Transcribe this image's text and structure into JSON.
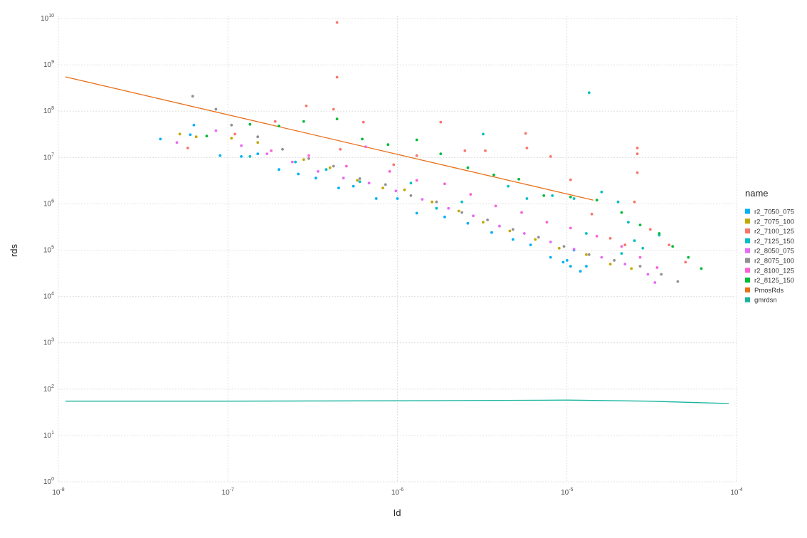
{
  "chart_data": {
    "type": "scatter",
    "title": "",
    "xlabel": "Id",
    "ylabel": "rds",
    "x_scale": "log10",
    "y_scale": "log10",
    "xlim": [
      1e-08,
      0.0001
    ],
    "ylim": [
      1,
      10000000000.0
    ],
    "x_ticks": [
      {
        "base": "10",
        "exp": "-8"
      },
      {
        "base": "10",
        "exp": "-7"
      },
      {
        "base": "10",
        "exp": "-6"
      },
      {
        "base": "10",
        "exp": "-5"
      },
      {
        "base": "10",
        "exp": "-4"
      }
    ],
    "y_ticks": [
      {
        "base": "10",
        "exp": "0"
      },
      {
        "base": "10",
        "exp": "1"
      },
      {
        "base": "10",
        "exp": "2"
      },
      {
        "base": "10",
        "exp": "3"
      },
      {
        "base": "10",
        "exp": "4"
      },
      {
        "base": "10",
        "exp": "5"
      },
      {
        "base": "10",
        "exp": "6"
      },
      {
        "base": "10",
        "exp": "7"
      },
      {
        "base": "10",
        "exp": "8"
      },
      {
        "base": "10",
        "exp": "9"
      },
      {
        "base": "10",
        "exp": "10"
      }
    ],
    "grid": true,
    "legend": {
      "title": "name",
      "position": "right"
    },
    "series": [
      {
        "name": "r2_7050_075",
        "color": "#00B0F6",
        "kind": "points",
        "points": [
          [
            4e-08,
            25000000.0
          ],
          [
            6e-08,
            31000000.0
          ],
          [
            6.3e-08,
            50000000.0
          ],
          [
            9e-08,
            11000000.0
          ],
          [
            1.2e-07,
            10500000.0
          ],
          [
            1.5e-07,
            12000000.0
          ],
          [
            2e-07,
            5500000.0
          ],
          [
            2.6e-07,
            4400000.0
          ],
          [
            3.3e-07,
            3600000.0
          ],
          [
            4.5e-07,
            2200000.0
          ],
          [
            5.5e-07,
            2400000.0
          ],
          [
            7.5e-07,
            1300000.0
          ],
          [
            1e-06,
            1300000.0
          ],
          [
            1.3e-06,
            630000.0
          ],
          [
            1.9e-06,
            520000.0
          ],
          [
            2.6e-06,
            380000.0
          ],
          [
            3.6e-06,
            240000.0
          ],
          [
            4.8e-06,
            170000.0
          ],
          [
            6.1e-06,
            130000.0
          ],
          [
            8e-06,
            70000.0
          ],
          [
            9.5e-06,
            55000.0
          ],
          [
            1.05e-05,
            45000.0
          ],
          [
            1.2e-05,
            35000.0
          ],
          [
            1.3e-05,
            45000.0
          ],
          [
            1e-05,
            60000.0
          ],
          [
            1.1e-05,
            100000.0
          ]
        ]
      },
      {
        "name": "r2_7075_100",
        "color": "#C0A900",
        "kind": "points",
        "points": [
          [
            5.2e-08,
            32000000.0
          ],
          [
            6.5e-08,
            28000000.0
          ],
          [
            1.05e-07,
            26000000.0
          ],
          [
            1.5e-07,
            21000000.0
          ],
          [
            2.8e-07,
            9000000.0
          ],
          [
            4e-07,
            6000000.0
          ],
          [
            5.8e-07,
            3200000.0
          ],
          [
            8.2e-07,
            2200000.0
          ],
          [
            1.1e-06,
            2000000.0
          ],
          [
            1.6e-06,
            1100000.0
          ],
          [
            2.3e-06,
            700000.0
          ],
          [
            3.2e-06,
            400000.0
          ],
          [
            4.6e-06,
            260000.0
          ],
          [
            6.5e-06,
            170000.0
          ],
          [
            9e-06,
            110000.0
          ],
          [
            1.3e-05,
            80000.0
          ],
          [
            1.8e-05,
            50000.0
          ],
          [
            2.4e-05,
            40000.0
          ]
        ]
      },
      {
        "name": "r2_7100_125",
        "color": "#F8766D",
        "kind": "points",
        "points": [
          [
            5.8e-08,
            16000000.0
          ],
          [
            1.1e-07,
            32000000.0
          ],
          [
            1.9e-07,
            60000000.0
          ],
          [
            2.9e-07,
            130000000.0
          ],
          [
            4.4e-07,
            8200000000.0
          ],
          [
            4.4e-07,
            540000000.0
          ],
          [
            4.2e-07,
            110000000.0
          ],
          [
            4.6e-07,
            15000000.0
          ],
          [
            6.3e-07,
            58000000.0
          ],
          [
            9.5e-07,
            7000000.0
          ],
          [
            1.3e-06,
            11000000.0
          ],
          [
            1.8e-06,
            58000000.0
          ],
          [
            2.5e-06,
            14000000.0
          ],
          [
            3.3e-06,
            14000000.0
          ],
          [
            5.7e-06,
            33000000.0
          ],
          [
            5.8e-06,
            16000000.0
          ],
          [
            8e-06,
            10500000.0
          ],
          [
            1.05e-05,
            3300000.0
          ],
          [
            2.6e-05,
            16000000.0
          ],
          [
            2.6e-05,
            12000000.0
          ],
          [
            2.6e-05,
            4700000.0
          ],
          [
            2.5e-05,
            1100000.0
          ],
          [
            1.4e-05,
            600000.0
          ],
          [
            1.8e-05,
            180000.0
          ],
          [
            2.2e-05,
            130000.0
          ],
          [
            3.1e-05,
            280000.0
          ],
          [
            4e-05,
            130000.0
          ],
          [
            5e-05,
            55000.0
          ]
        ]
      },
      {
        "name": "r2_7125_150",
        "color": "#00BFC4",
        "kind": "points",
        "points": [
          [
            1.35e-07,
            10500000.0
          ],
          [
            2.5e-07,
            8000000.0
          ],
          [
            3.8e-07,
            5500000.0
          ],
          [
            6e-07,
            3000000.0
          ],
          [
            1.2e-06,
            2800000.0
          ],
          [
            1.7e-06,
            800000.0
          ],
          [
            2.4e-06,
            1100000.0
          ],
          [
            3.2e-06,
            32000000.0
          ],
          [
            4.5e-06,
            2400000.0
          ],
          [
            5.8e-06,
            1300000.0
          ],
          [
            8.2e-06,
            1500000.0
          ],
          [
            1.1e-05,
            1300000.0
          ],
          [
            1.35e-05,
            250000000.0
          ],
          [
            1.6e-05,
            1800000.0
          ],
          [
            2e-05,
            1100000.0
          ],
          [
            2.3e-05,
            400000.0
          ],
          [
            2.5e-05,
            160000.0
          ],
          [
            2.8e-05,
            110000.0
          ],
          [
            3.5e-05,
            210000.0
          ],
          [
            1.3e-05,
            230000.0
          ],
          [
            2.1e-05,
            85000.0
          ]
        ]
      },
      {
        "name": "r2_8050_075",
        "color": "#E76BF3",
        "kind": "points",
        "points": [
          [
            5e-08,
            21000000.0
          ],
          [
            8.5e-08,
            38000000.0
          ],
          [
            1.2e-07,
            18000000.0
          ],
          [
            1.7e-07,
            12000000.0
          ],
          [
            2.4e-07,
            8000000.0
          ],
          [
            3.4e-07,
            5000000.0
          ],
          [
            4.8e-07,
            3600000.0
          ],
          [
            6.8e-07,
            2800000.0
          ],
          [
            9.8e-07,
            1900000.0
          ],
          [
            1.4e-06,
            1250000.0
          ],
          [
            2e-06,
            800000.0
          ],
          [
            2.8e-06,
            550000.0
          ],
          [
            4e-06,
            330000.0
          ],
          [
            5.6e-06,
            230000.0
          ],
          [
            8e-06,
            150000.0
          ],
          [
            1.1e-05,
            105000.0
          ],
          [
            1.6e-05,
            70000.0
          ],
          [
            2.2e-05,
            50000.0
          ],
          [
            3e-05,
            30000.0
          ],
          [
            3.3e-05,
            20000.0
          ]
        ]
      },
      {
        "name": "r2_8075_100",
        "color": "#919191",
        "kind": "points",
        "points": [
          [
            6.2e-08,
            210000000.0
          ],
          [
            8.5e-08,
            110000000.0
          ],
          [
            1.05e-07,
            50000000.0
          ],
          [
            1.5e-07,
            28000000.0
          ],
          [
            2.1e-07,
            15000000.0
          ],
          [
            3e-07,
            9500000.0
          ],
          [
            4.2e-07,
            6500000.0
          ],
          [
            6e-07,
            3500000.0
          ],
          [
            8.5e-07,
            2600000.0
          ],
          [
            1.2e-06,
            1500000.0
          ],
          [
            1.7e-06,
            1100000.0
          ],
          [
            2.4e-06,
            650000.0
          ],
          [
            3.4e-06,
            450000.0
          ],
          [
            4.8e-06,
            280000.0
          ],
          [
            6.8e-06,
            190000.0
          ],
          [
            9.6e-06,
            120000.0
          ],
          [
            1.35e-05,
            80000.0
          ],
          [
            1.9e-05,
            60000.0
          ],
          [
            2.7e-05,
            45000.0
          ],
          [
            3.6e-05,
            30000.0
          ],
          [
            4.5e-05,
            21000.0
          ]
        ]
      },
      {
        "name": "r2_8100_125",
        "color": "#FB61D7",
        "kind": "points",
        "points": [
          [
            1.8e-07,
            14000000.0
          ],
          [
            3e-07,
            11000000.0
          ],
          [
            5e-07,
            6500000.0
          ],
          [
            6.5e-07,
            17000000.0
          ],
          [
            9e-07,
            5000000.0
          ],
          [
            1.3e-06,
            3200000.0
          ],
          [
            1.9e-06,
            2700000.0
          ],
          [
            2.7e-06,
            1600000.0
          ],
          [
            3.8e-06,
            900000.0
          ],
          [
            5.4e-06,
            650000.0
          ],
          [
            7.6e-06,
            400000.0
          ],
          [
            1.05e-05,
            300000.0
          ],
          [
            1.5e-05,
            200000.0
          ],
          [
            2.1e-05,
            120000.0
          ],
          [
            2.7e-05,
            70000.0
          ],
          [
            3.4e-05,
            42000.0
          ]
        ]
      },
      {
        "name": "r2_8125_150",
        "color": "#00BA38",
        "kind": "points",
        "points": [
          [
            7.5e-08,
            29000000.0
          ],
          [
            1.35e-07,
            52000000.0
          ],
          [
            2e-07,
            48000000.0
          ],
          [
            2.8e-07,
            60000000.0
          ],
          [
            4.4e-07,
            68000000.0
          ],
          [
            6.2e-07,
            25000000.0
          ],
          [
            8.8e-07,
            19000000.0
          ],
          [
            1.3e-06,
            24000000.0
          ],
          [
            1.8e-06,
            12000000.0
          ],
          [
            2.6e-06,
            6000000.0
          ],
          [
            3.7e-06,
            4200000.0
          ],
          [
            5.2e-06,
            3400000.0
          ],
          [
            7.3e-06,
            1500000.0
          ],
          [
            1.05e-05,
            1400000.0
          ],
          [
            1.5e-05,
            1200000.0
          ],
          [
            2.1e-05,
            650000.0
          ],
          [
            2.7e-05,
            350000.0
          ],
          [
            3.5e-05,
            230000.0
          ],
          [
            4.2e-05,
            120000.0
          ],
          [
            5.2e-05,
            70000.0
          ],
          [
            6.2e-05,
            40000.0
          ]
        ]
      },
      {
        "name": "PmosRds",
        "color": "#E8701A",
        "kind": "line",
        "points": [
          [
            1.1e-08,
            550000000.0
          ],
          [
            1.43e-05,
            1200000.0
          ]
        ]
      },
      {
        "name": "gmrdsn",
        "color": "#17B39F",
        "kind": "line",
        "points": [
          [
            1.1e-08,
            55
          ],
          [
            1e-07,
            55
          ],
          [
            1e-06,
            56
          ],
          [
            1e-05,
            58
          ],
          [
            3e-05,
            55
          ],
          [
            9e-05,
            49
          ]
        ]
      }
    ]
  }
}
